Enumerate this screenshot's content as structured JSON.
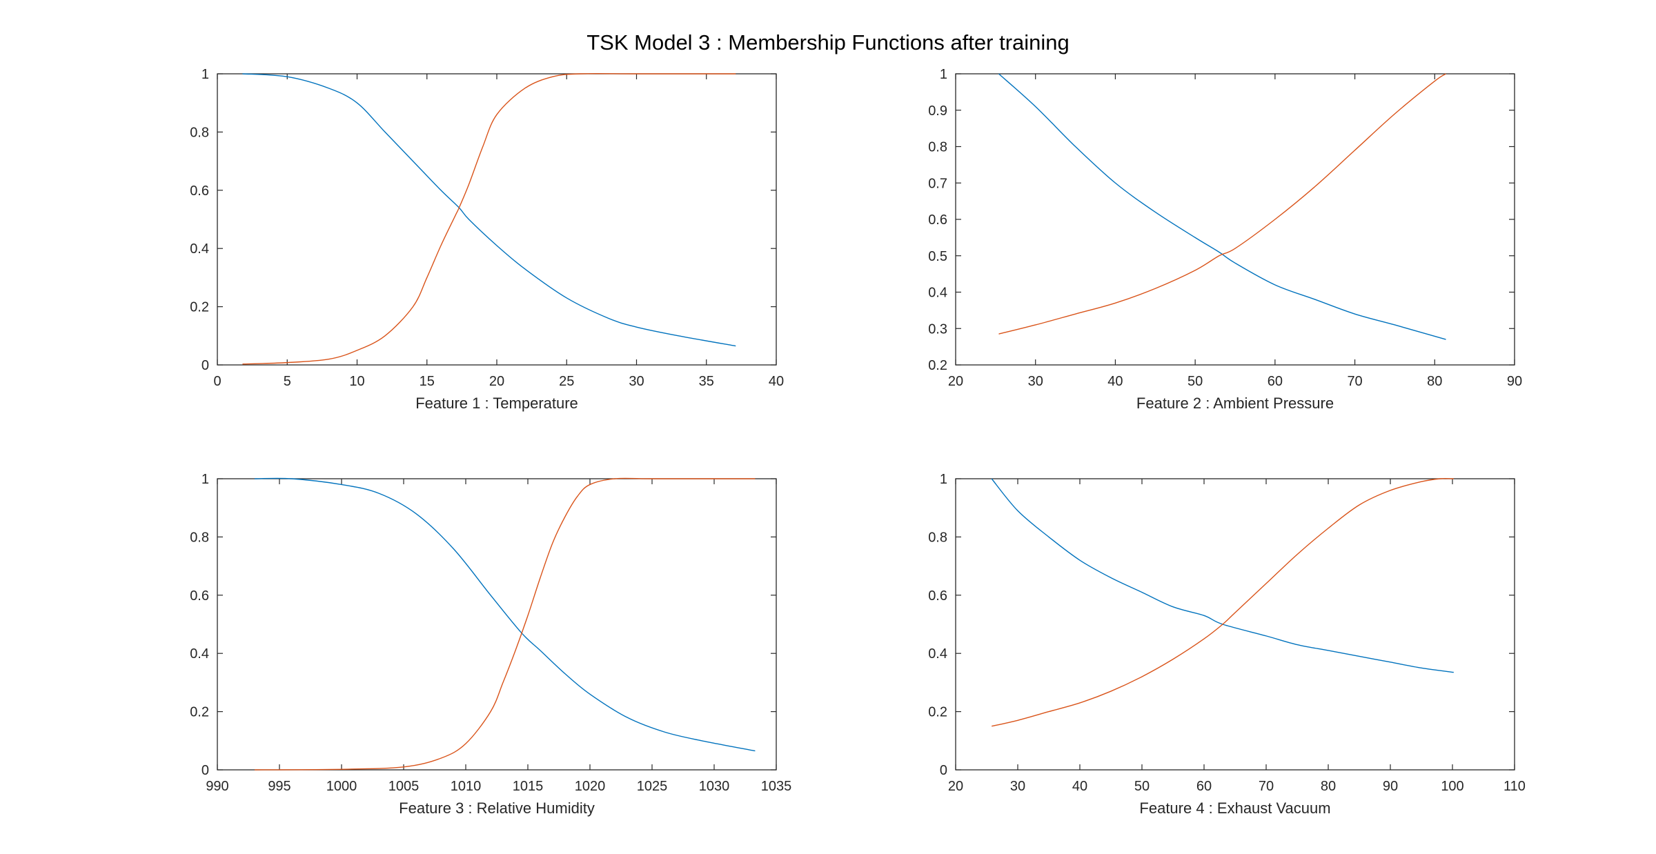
{
  "figure": {
    "title": "TSK Model 3 : Membership Functions after training"
  },
  "colors": {
    "series_1": "#0072BD",
    "series_2": "#D95319",
    "axes": "#262626",
    "background": "#ffffff"
  },
  "chart_data": [
    {
      "type": "line",
      "xlabel": "Feature 1  :  Temperature",
      "ylabel": "",
      "xlim": [
        0,
        40
      ],
      "ylim": [
        0,
        1
      ],
      "xticks": [
        0,
        5,
        10,
        15,
        20,
        25,
        30,
        35,
        40
      ],
      "yticks": [
        0,
        0.2,
        0.4,
        0.6,
        0.8,
        1
      ],
      "grid": false,
      "series": [
        {
          "x": [
            1.8,
            5,
            8,
            10,
            12,
            14,
            16,
            17.3,
            18,
            20,
            22,
            25,
            28,
            30,
            33,
            37.1
          ],
          "values": [
            1.0,
            0.99,
            0.95,
            0.9,
            0.8,
            0.7,
            0.6,
            0.54,
            0.5,
            0.41,
            0.33,
            0.23,
            0.16,
            0.13,
            0.1,
            0.065
          ]
        },
        {
          "x": [
            1.8,
            5,
            8,
            10,
            12,
            14,
            15,
            16,
            17,
            17.3,
            18,
            19,
            20,
            22,
            24,
            26,
            30,
            37.1
          ],
          "values": [
            0.003,
            0.008,
            0.02,
            0.05,
            0.1,
            0.2,
            0.3,
            0.41,
            0.51,
            0.54,
            0.62,
            0.75,
            0.86,
            0.95,
            0.99,
            1.0,
            1.0,
            1.0
          ]
        }
      ]
    },
    {
      "type": "line",
      "xlabel": "Feature 2  :  Ambient Pressure",
      "ylabel": "",
      "xlim": [
        20,
        90
      ],
      "ylim": [
        0.2,
        1
      ],
      "xticks": [
        20,
        30,
        40,
        50,
        60,
        70,
        80,
        90
      ],
      "yticks": [
        0.2,
        0.3,
        0.4,
        0.5,
        0.6,
        0.7,
        0.8,
        0.9,
        1
      ],
      "grid": false,
      "series": [
        {
          "x": [
            25.4,
            30,
            35,
            40,
            45,
            50,
            53,
            55,
            60,
            65,
            70,
            75,
            81.4
          ],
          "values": [
            1.0,
            0.91,
            0.8,
            0.7,
            0.62,
            0.55,
            0.51,
            0.48,
            0.42,
            0.38,
            0.34,
            0.31,
            0.27
          ]
        },
        {
          "x": [
            25.4,
            30,
            35,
            40,
            45,
            50,
            53,
            55,
            60,
            65,
            70,
            75,
            80,
            81.4
          ],
          "values": [
            0.285,
            0.31,
            0.34,
            0.37,
            0.41,
            0.46,
            0.5,
            0.52,
            0.6,
            0.69,
            0.79,
            0.89,
            0.98,
            1.0
          ]
        }
      ]
    },
    {
      "type": "line",
      "xlabel": "Feature 3  :  Relative Humidity",
      "ylabel": "",
      "xlim": [
        990,
        1035
      ],
      "ylim": [
        0,
        1
      ],
      "xticks": [
        990,
        995,
        1000,
        1005,
        1010,
        1015,
        1020,
        1025,
        1030,
        1035
      ],
      "yticks": [
        0,
        0.2,
        0.4,
        0.6,
        0.8,
        1
      ],
      "grid": false,
      "series": [
        {
          "x": [
            993,
            996,
            1000,
            1003,
            1006,
            1009,
            1012,
            1014.5,
            1016,
            1018,
            1020,
            1023,
            1026,
            1029,
            1033.3
          ],
          "values": [
            1.0,
            1.0,
            0.98,
            0.95,
            0.88,
            0.76,
            0.6,
            0.47,
            0.41,
            0.33,
            0.26,
            0.18,
            0.13,
            0.1,
            0.065
          ]
        },
        {
          "x": [
            993,
            1000,
            1005,
            1008,
            1010,
            1012,
            1013,
            1014,
            1015,
            1016,
            1017,
            1018,
            1019,
            1020,
            1022,
            1025,
            1033.3
          ],
          "values": [
            0.0,
            0.002,
            0.01,
            0.04,
            0.09,
            0.2,
            0.3,
            0.41,
            0.53,
            0.66,
            0.78,
            0.87,
            0.94,
            0.98,
            1.0,
            1.0,
            1.0
          ]
        }
      ]
    },
    {
      "type": "line",
      "xlabel": "Feature 4  :  Exhaust Vacuum",
      "ylabel": "",
      "xlim": [
        20,
        110
      ],
      "ylim": [
        0,
        1
      ],
      "xticks": [
        20,
        30,
        40,
        50,
        60,
        70,
        80,
        90,
        100,
        110
      ],
      "yticks": [
        0,
        0.2,
        0.4,
        0.6,
        0.8,
        1
      ],
      "grid": false,
      "series": [
        {
          "x": [
            25.8,
            30,
            35,
            40,
            45,
            50,
            55,
            60,
            63,
            70,
            75,
            80,
            85,
            90,
            95,
            100.2
          ],
          "values": [
            1.0,
            0.89,
            0.8,
            0.72,
            0.66,
            0.61,
            0.56,
            0.53,
            0.5,
            0.46,
            0.43,
            0.41,
            0.39,
            0.37,
            0.35,
            0.335
          ]
        },
        {
          "x": [
            25.8,
            30,
            35,
            40,
            45,
            50,
            55,
            60,
            63,
            65,
            70,
            75,
            80,
            85,
            90,
            95,
            98,
            100.2
          ],
          "values": [
            0.15,
            0.17,
            0.2,
            0.23,
            0.27,
            0.32,
            0.38,
            0.45,
            0.5,
            0.54,
            0.64,
            0.74,
            0.83,
            0.91,
            0.96,
            0.99,
            1.0,
            1.0
          ]
        }
      ]
    }
  ]
}
